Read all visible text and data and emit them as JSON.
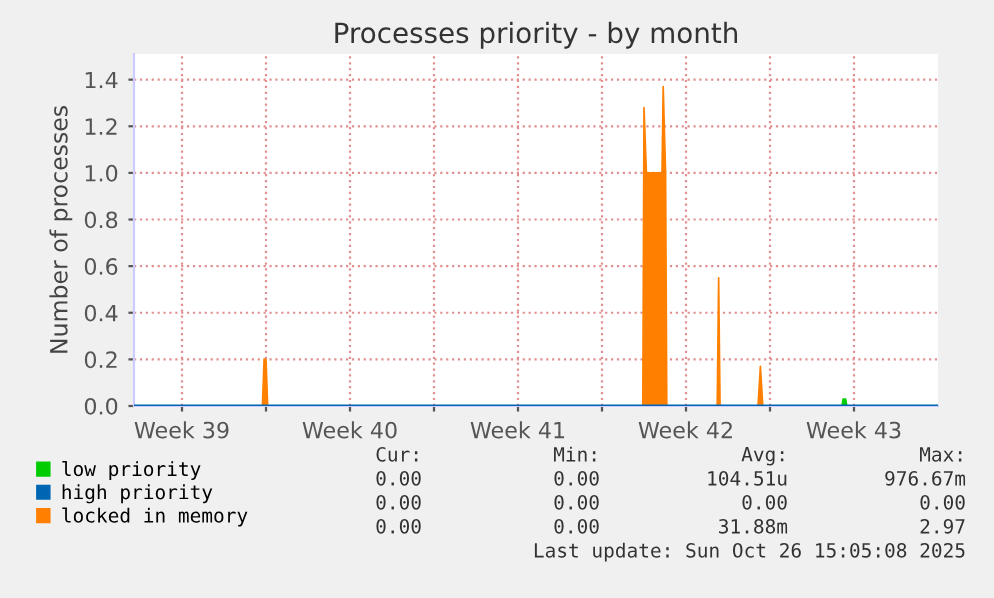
{
  "chart_data": {
    "type": "area",
    "title": "Processes priority - by month",
    "ylabel": "Number of processes",
    "xlim": [
      "2025-09-23T12:00",
      "2025-10-27T00:00"
    ],
    "xticks": [
      {
        "value": "2025-09-25T12:00",
        "label": "Week 39"
      },
      {
        "value": "2025-09-29",
        "label": null
      },
      {
        "value": "2025-10-02T12:00",
        "label": "Week 40"
      },
      {
        "value": "2025-10-06",
        "label": null
      },
      {
        "value": "2025-10-09T12:00",
        "label": "Week 41"
      },
      {
        "value": "2025-10-13",
        "label": null
      },
      {
        "value": "2025-10-16T12:00",
        "label": "Week 42"
      },
      {
        "value": "2025-10-20",
        "label": null
      },
      {
        "value": "2025-10-23T12:00",
        "label": "Week 43"
      }
    ],
    "ylim": [
      0,
      1.51
    ],
    "yticks": [
      {
        "value": 0,
        "label": "0.0"
      },
      {
        "value": 0.2,
        "label": "0.2"
      },
      {
        "value": 0.4,
        "label": "0.4"
      },
      {
        "value": 0.6,
        "label": "0.6"
      },
      {
        "value": 0.8,
        "label": "0.8"
      },
      {
        "value": 1,
        "label": "1.0"
      },
      {
        "value": 1.2,
        "label": "1.2"
      },
      {
        "value": 1.4,
        "label": "1.4"
      }
    ],
    "grid": true,
    "legend": "bottom left",
    "x": [
      "2025-09-23T12:00",
      "2025-09-28T20:24",
      "2025-09-28T22:05",
      "2025-09-29T00:00",
      "2025-09-29T01:41",
      "2025-10-14T16:48",
      "2025-10-14T18:00",
      "2025-10-14T20:24",
      "2025-10-15T00:00",
      "2025-10-15T02:24",
      "2025-10-15T12:00",
      "2025-10-15T13:12",
      "2025-10-15T15:36",
      "2025-10-15T16:48",
      "2025-10-17T19:12",
      "2025-10-17T20:38",
      "2025-10-17T22:05",
      "2025-10-19T12:00",
      "2025-10-19T14:24",
      "2025-10-19T16:48",
      "2025-10-23T00:00",
      "2025-10-23T01:12",
      "2025-10-23T03:36",
      "2025-10-23T04:48",
      "2025-10-27T00:00"
    ],
    "series": [
      {
        "name": "low priority",
        "color": "#00cc00",
        "values": [
          0,
          0,
          0,
          0,
          0,
          0,
          0,
          0,
          0,
          0,
          0,
          0,
          0,
          0,
          0,
          0,
          0,
          0,
          0,
          0,
          0,
          0.03,
          0.03,
          0,
          0
        ]
      },
      {
        "name": "high priority",
        "type": "line",
        "color": "#0066b3",
        "values": [
          0,
          0,
          0,
          0,
          0,
          0,
          0,
          0,
          0,
          0,
          0,
          0,
          0,
          0,
          0,
          0,
          0,
          0,
          0,
          0,
          0,
          0,
          0,
          0,
          0
        ]
      },
      {
        "name": "locked in memory",
        "color": "#ff8000",
        "values": [
          0,
          0,
          0.2,
          0.2,
          0,
          0,
          1.28,
          1.0,
          1.0,
          1.0,
          1.0,
          1.37,
          1.0,
          0,
          0,
          0.55,
          0,
          0,
          0.17,
          0,
          0,
          0,
          0,
          0,
          0
        ]
      }
    ],
    "annotations": [
      "Cur:",
      "Min:",
      "Avg:",
      "Max:",
      "0.00",
      "0.00",
      "104.51u",
      "976.67m",
      "0.00",
      "0.00",
      "0.00",
      "0.00",
      "0.00",
      "0.00",
      "31.88m",
      "2.97",
      "Last update: Sun Oct 26 15:05:08 2025"
    ]
  }
}
